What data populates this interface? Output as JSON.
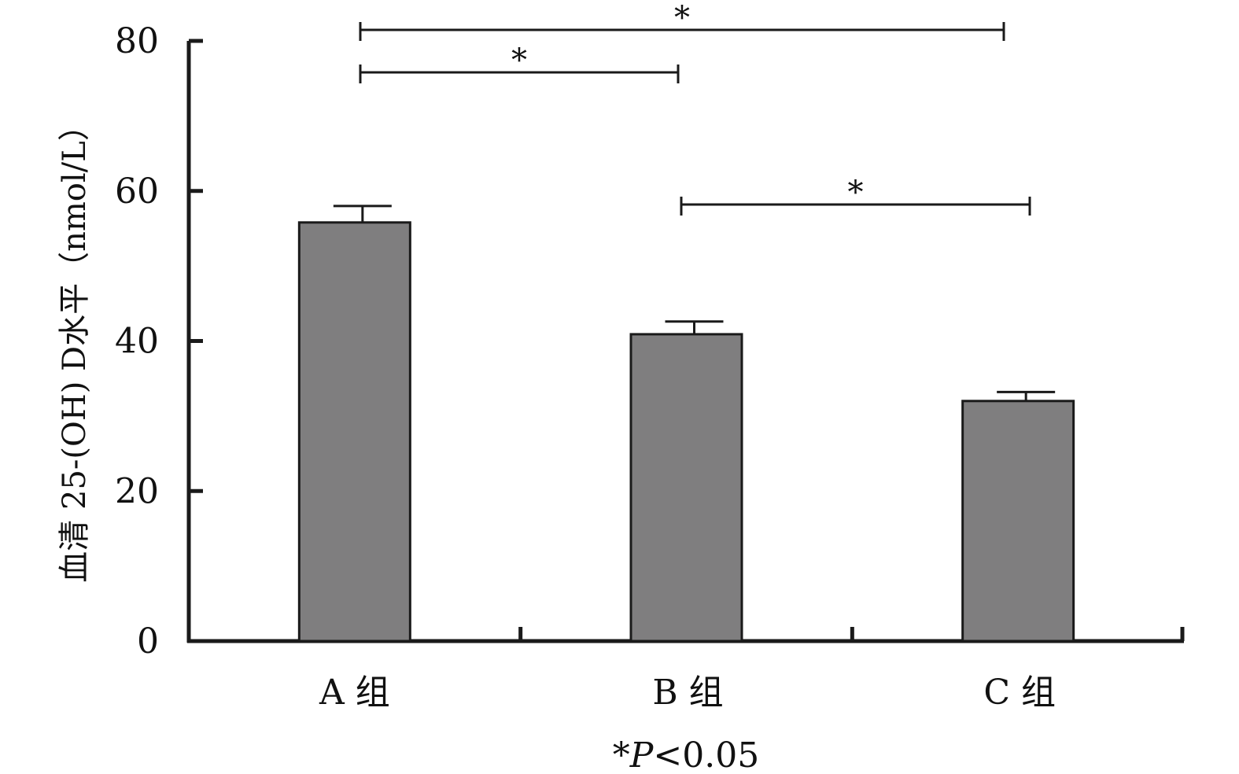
{
  "colors": {
    "bar_fill": "#7f7e7f",
    "bar_stroke": "#1a1a1a",
    "axis": "#1a1a1a",
    "text": "#111111",
    "background": "#ffffff"
  },
  "chart_data": {
    "type": "bar",
    "title": "",
    "xlabel": "",
    "ylabel": "血清 25-(OH) D水平（nmol/L）",
    "categories": [
      "A 组",
      "B 组",
      "C 组"
    ],
    "values": [
      55.8,
      40.9,
      32.0
    ],
    "error_upper": [
      58.0,
      42.6,
      33.2
    ],
    "ylim": [
      0,
      80
    ],
    "yticks": [
      "0",
      "20",
      "40",
      "60",
      "80"
    ],
    "grid": false,
    "legend": "none",
    "significance": [
      {
        "from": "A 组",
        "to": "B 组",
        "label": "*"
      },
      {
        "from": "A 组",
        "to": "C 组",
        "label": "*"
      },
      {
        "from": "B 组",
        "to": "C 组",
        "label": "*"
      }
    ],
    "footnote": {
      "prefix": "*",
      "p_symbol": "P",
      "rest": "<0.05"
    }
  }
}
